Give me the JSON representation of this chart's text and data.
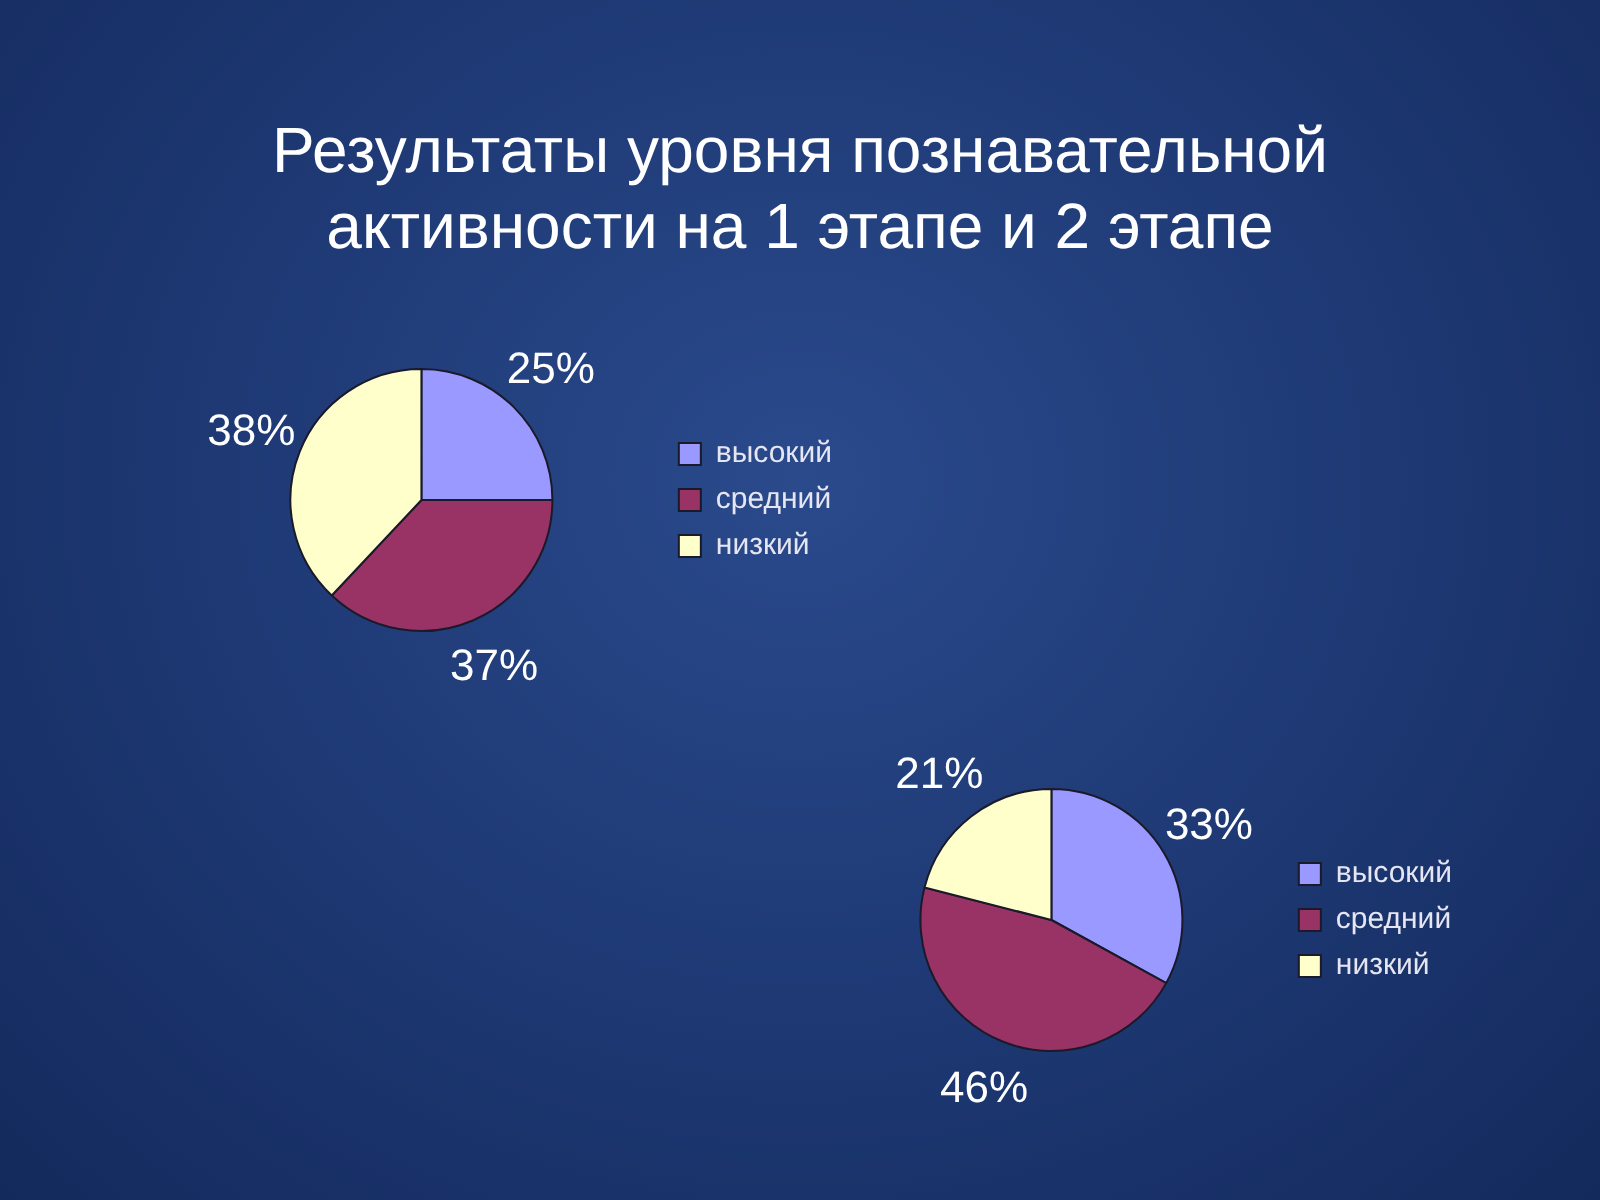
{
  "chart_data": [
    {
      "type": "pie",
      "title": "Результаты уровня познавательной активности на 1 этапе и 2 этапе",
      "categories": [
        "высокий",
        "средний",
        "низкий"
      ],
      "values": [
        25,
        37,
        38
      ],
      "value_labels": [
        "25%",
        "37%",
        "38%"
      ],
      "colors": [
        "#9999ff",
        "#993366",
        "#ffffcc"
      ],
      "legend": "right"
    },
    {
      "type": "pie",
      "categories": [
        "высокий",
        "средний",
        "низкий"
      ],
      "values": [
        33,
        46,
        21
      ],
      "value_labels": [
        "33%",
        "46%",
        "21%"
      ],
      "colors": [
        "#9999ff",
        "#993366",
        "#ffffcc"
      ],
      "legend": "right"
    }
  ]
}
